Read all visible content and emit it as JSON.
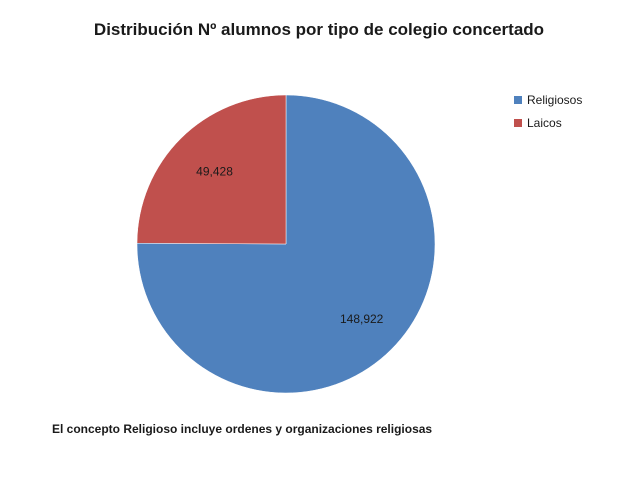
{
  "chart_data": {
    "type": "pie",
    "title": "Distribución Nº alumnos por tipo de colegio concertado",
    "categories": [
      "Religiosos",
      "Laicos"
    ],
    "values": [
      148922,
      49428
    ],
    "data_labels": [
      "148,922",
      "49,428"
    ],
    "colors": [
      "#4F81BD",
      "#C0504D"
    ],
    "legend_position": "right"
  },
  "footnote": "El concepto Religioso incluye ordenes y organizaciones religiosas"
}
